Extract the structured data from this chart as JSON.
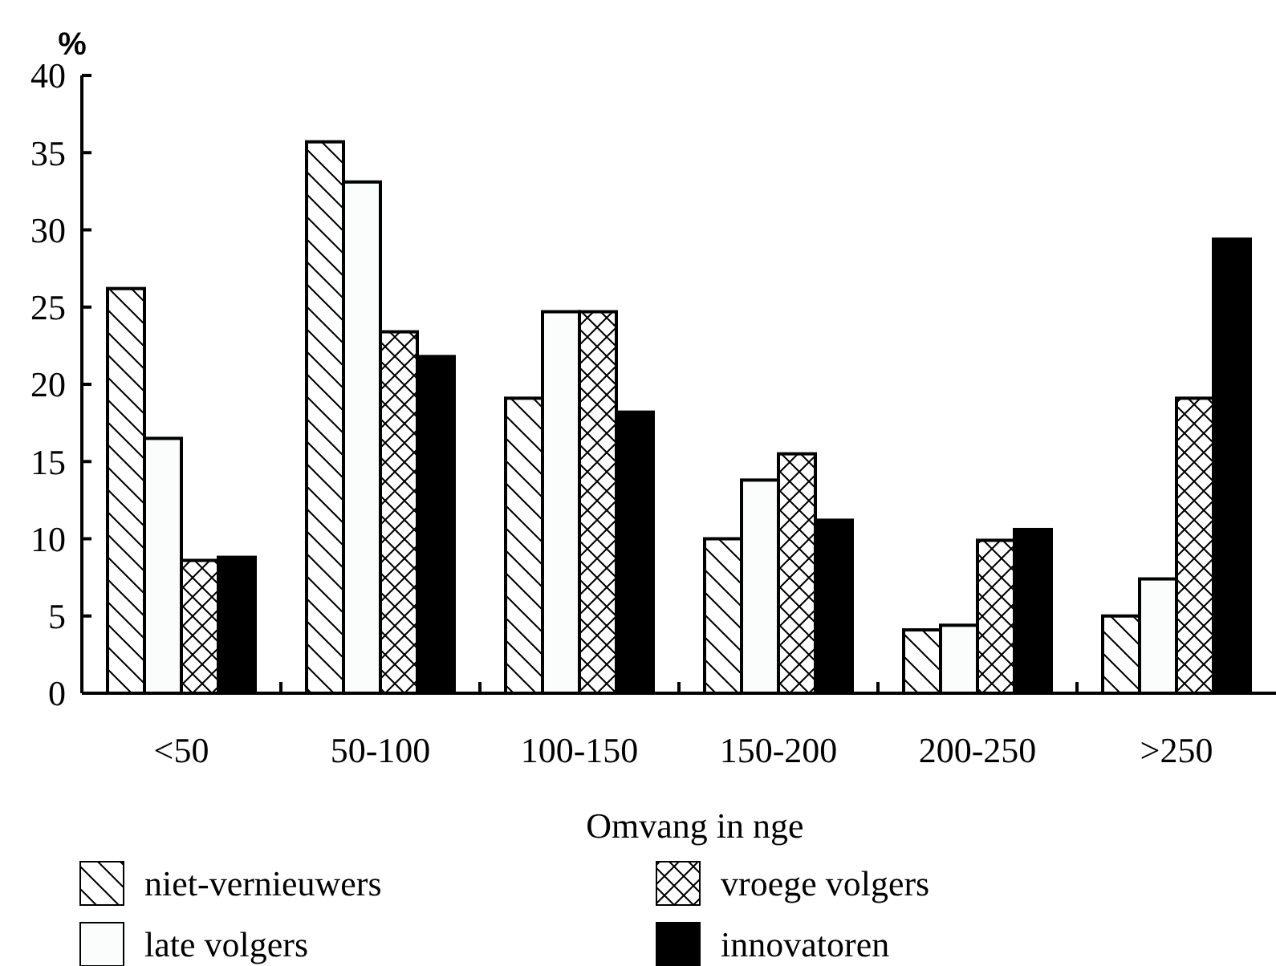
{
  "chart_data": {
    "type": "bar",
    "ylabel": "%",
    "xlabel": "Omvang in nge",
    "categories": [
      "<50",
      "50-100",
      "100-150",
      "150-200",
      "200-250",
      ">250"
    ],
    "series": [
      {
        "name": "niet-vernieuwers",
        "color": "#000000",
        "values": [
          26.2,
          35.7,
          19.1,
          10.0,
          4.1,
          5.0
        ]
      },
      {
        "name": "late volgers",
        "color": "#fbfdfd",
        "values": [
          16.5,
          33.1,
          24.7,
          13.8,
          4.4,
          7.4
        ]
      },
      {
        "name": "vroege volgers",
        "color": "#000000",
        "values": [
          8.6,
          23.4,
          24.7,
          15.5,
          9.9,
          19.1
        ]
      },
      {
        "name": "innovatoren",
        "color": "#000000",
        "values": [
          8.8,
          21.8,
          18.2,
          11.2,
          10.6,
          29.4
        ]
      }
    ],
    "ylim": [
      0,
      40
    ],
    "yticks": [
      0,
      5,
      10,
      15,
      20,
      25,
      30,
      35,
      40
    ],
    "grid": false,
    "legend": "bottom"
  }
}
